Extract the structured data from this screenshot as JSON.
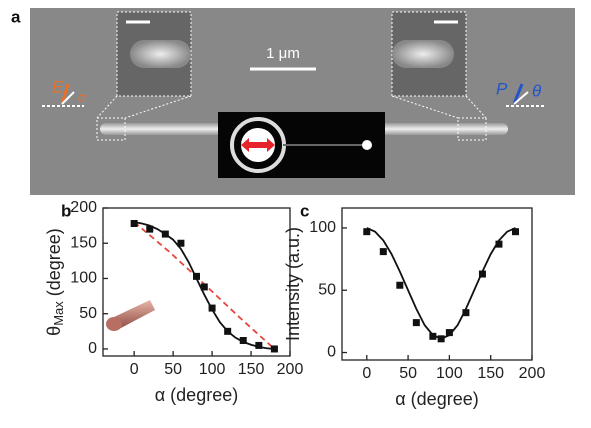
{
  "panel_a": {
    "label": "a",
    "scale_bar": "1 μm",
    "e_label": "E",
    "alpha": "α",
    "p_label": "P",
    "theta": "θ"
  },
  "chart_data": [
    {
      "type": "scatter",
      "panel_label": "b",
      "xlabel": "α (degree)",
      "ylabel": [
        "θ",
        "Max",
        " (degree)"
      ],
      "xlim": [
        -40,
        200
      ],
      "ylim": [
        -10,
        200
      ],
      "xticks": [
        0,
        50,
        100,
        150,
        200
      ],
      "yticks": [
        0,
        50,
        100,
        150,
        200
      ],
      "series": [
        {
          "mode": "lines",
          "color": "#e8453c",
          "dash": true,
          "x": [
            0,
            45,
            90,
            135,
            180
          ],
          "y": [
            180,
            138,
            92,
            45,
            0
          ]
        },
        {
          "mode": "lines",
          "color": "#111111",
          "dash": false,
          "x": [
            0,
            10,
            20,
            30,
            40,
            50,
            60,
            70,
            80,
            90,
            100,
            110,
            120,
            130,
            140,
            150,
            160,
            170,
            180
          ],
          "y": [
            180,
            178,
            175,
            170,
            163,
            155,
            142,
            123,
            100,
            77,
            56,
            38,
            25,
            16,
            10,
            6,
            3,
            1,
            0
          ]
        },
        {
          "mode": "markers",
          "color": "#111111",
          "x": [
            0,
            20,
            40,
            60,
            80,
            90,
            100,
            120,
            140,
            160,
            180
          ],
          "y": [
            178,
            170,
            163,
            150,
            103,
            88,
            58,
            25,
            12,
            5,
            0
          ]
        }
      ]
    },
    {
      "type": "scatter",
      "panel_label": "c",
      "xlabel": "α (degree)",
      "ylabel": [
        "Intensity (a.u.)"
      ],
      "xlim": [
        -30,
        200
      ],
      "ylim": [
        -6,
        116
      ],
      "xticks": [
        0,
        50,
        100,
        150,
        200
      ],
      "yticks": [
        0,
        50,
        100
      ],
      "series": [
        {
          "mode": "lines",
          "color": "#111111",
          "dash": false,
          "x": [
            0,
            10,
            20,
            30,
            40,
            50,
            60,
            70,
            80,
            90,
            100,
            110,
            120,
            130,
            140,
            150,
            160,
            170,
            180
          ],
          "y": [
            100,
            97,
            90,
            79,
            65,
            50,
            35,
            22,
            14,
            11,
            14,
            22,
            35,
            50,
            65,
            79,
            90,
            97,
            100
          ]
        },
        {
          "mode": "markers",
          "color": "#111111",
          "x": [
            0,
            20,
            40,
            60,
            80,
            90,
            100,
            120,
            140,
            160,
            180
          ],
          "y": [
            97,
            81,
            54,
            24,
            13,
            11,
            16,
            32,
            63,
            87,
            97
          ]
        }
      ]
    }
  ]
}
